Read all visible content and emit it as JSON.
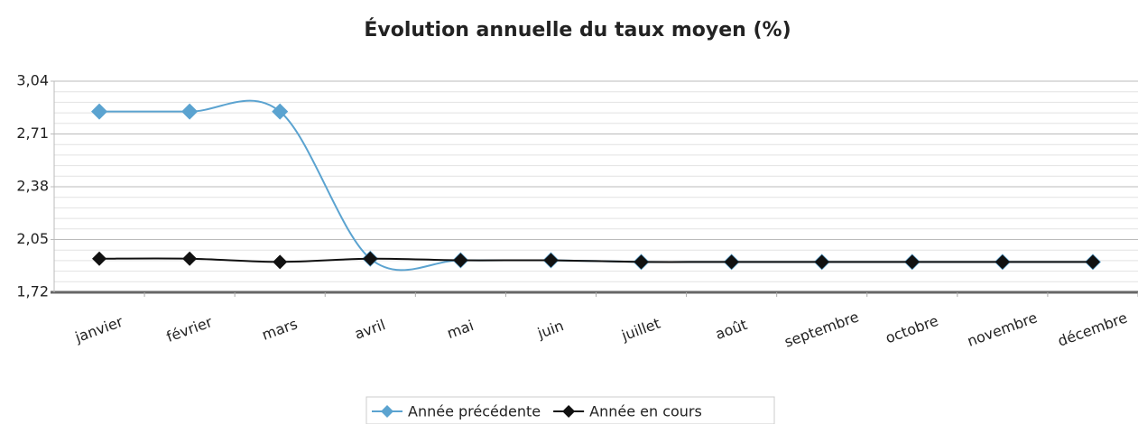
{
  "chart_data": {
    "type": "line",
    "title": "Évolution annuelle du taux moyen (%)",
    "categories": [
      "janvier",
      "février",
      "mars",
      "avril",
      "mai",
      "juin",
      "juillet",
      "août",
      "septembre",
      "octobre",
      "novembre",
      "décembre"
    ],
    "series": [
      {
        "name": "Année précédente",
        "color": "#5ba3d0",
        "values": [
          2.85,
          2.85,
          2.85,
          1.93,
          1.92,
          1.92,
          1.91,
          1.91,
          1.91,
          1.91,
          1.91,
          1.91
        ]
      },
      {
        "name": "Année en cours",
        "color": "#111111",
        "values": [
          1.93,
          1.93,
          1.91,
          1.93,
          1.92,
          1.92,
          1.91,
          1.91,
          1.91,
          1.91,
          1.91,
          1.91
        ]
      }
    ],
    "ylim": [
      1.72,
      3.04
    ],
    "yticks": [
      {
        "value": 1.72,
        "label": "1,72"
      },
      {
        "value": 2.05,
        "label": "2,05"
      },
      {
        "value": 2.38,
        "label": "2,38"
      },
      {
        "value": 2.71,
        "label": "2,71"
      },
      {
        "value": 3.04,
        "label": "3,04"
      }
    ],
    "grid": true,
    "minor_grid": true,
    "smooth": true,
    "legend": "bottom"
  }
}
